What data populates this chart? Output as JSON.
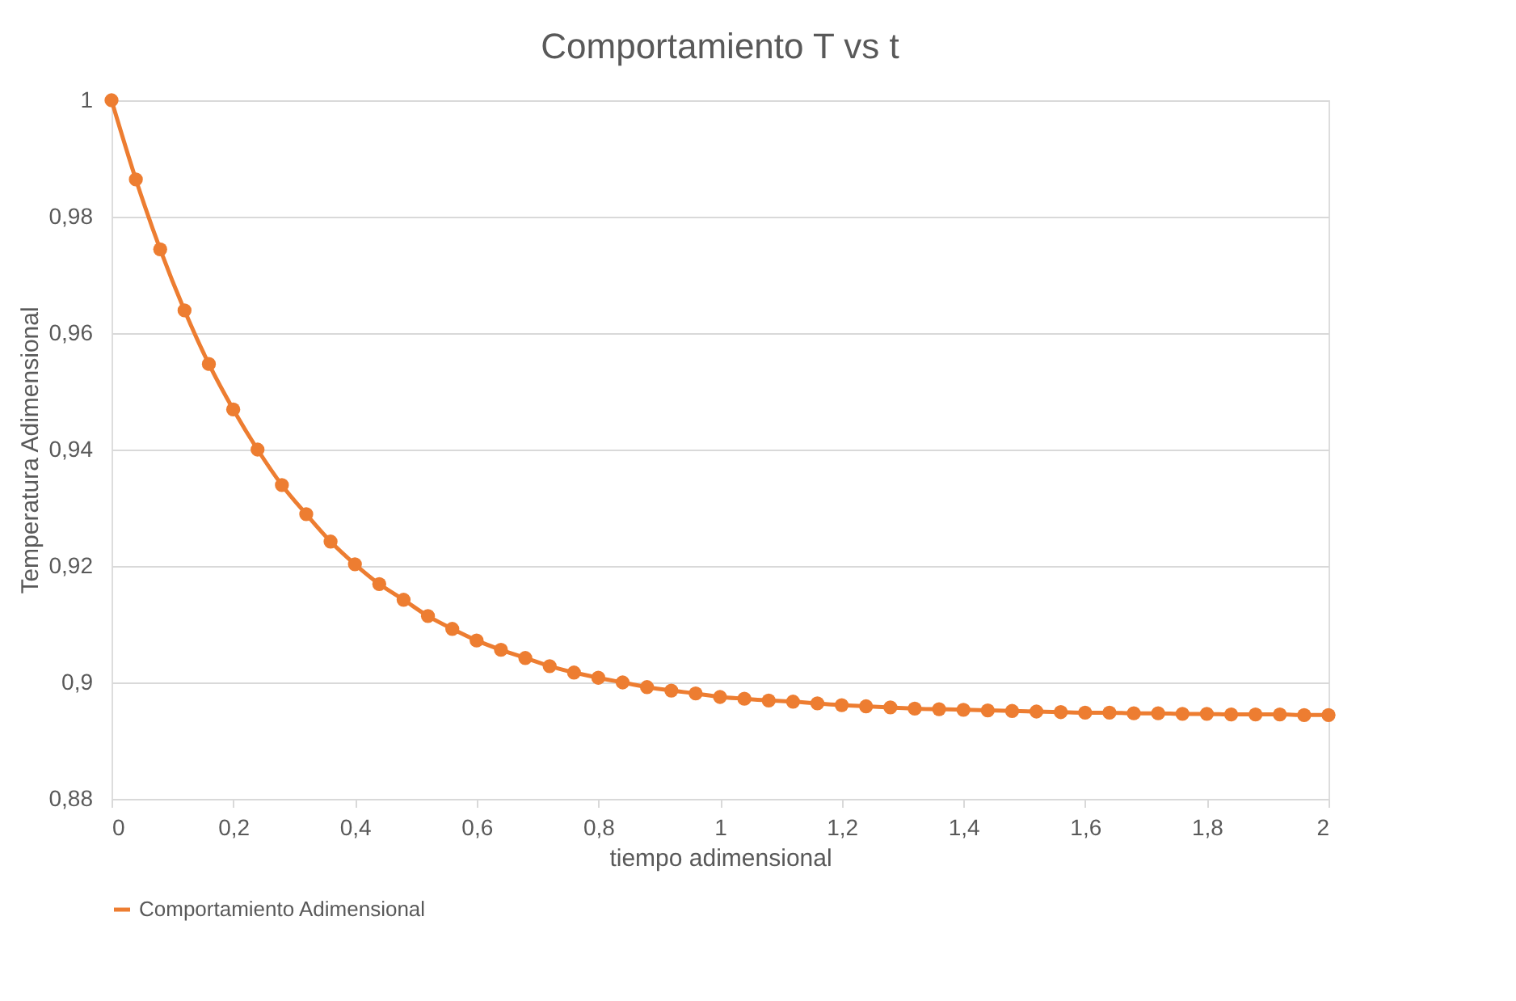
{
  "chart_data": {
    "type": "line",
    "title": "Comportamiento T vs t",
    "xlabel": "tiempo adimensional",
    "ylabel": "Temperatura Adimensional",
    "x": [
      0,
      0.04,
      0.08,
      0.12,
      0.16,
      0.2,
      0.24,
      0.28,
      0.32,
      0.36,
      0.4,
      0.44,
      0.48,
      0.52,
      0.56,
      0.6,
      0.64,
      0.68,
      0.72,
      0.76,
      0.8,
      0.84,
      0.88,
      0.92,
      0.96,
      1.0,
      1.04,
      1.08,
      1.12,
      1.16,
      1.2,
      1.24,
      1.28,
      1.32,
      1.36,
      1.4,
      1.44,
      1.48,
      1.52,
      1.56,
      1.6,
      1.64,
      1.68,
      1.72,
      1.76,
      1.8,
      1.84,
      1.88,
      1.92,
      1.96,
      2.0
    ],
    "series": [
      {
        "name": "Comportamiento Adimensional",
        "color": "#ed7d31",
        "values": [
          1.0,
          0.9864,
          0.9744,
          0.9639,
          0.9547,
          0.9469,
          0.94,
          0.9339,
          0.9289,
          0.9242,
          0.9203,
          0.9169,
          0.9142,
          0.9114,
          0.9092,
          0.9072,
          0.9056,
          0.9042,
          0.9028,
          0.9017,
          0.9008,
          0.9,
          0.8992,
          0.8986,
          0.8981,
          0.8975,
          0.8972,
          0.8969,
          0.8967,
          0.8964,
          0.8961,
          0.8959,
          0.8957,
          0.8955,
          0.8954,
          0.8953,
          0.8952,
          0.8951,
          0.895,
          0.8949,
          0.8948,
          0.8948,
          0.8947,
          0.8947,
          0.8946,
          0.8946,
          0.8945,
          0.8945,
          0.8945,
          0.8944,
          0.8944
        ]
      }
    ],
    "xlim": [
      0,
      2
    ],
    "ylim": [
      0.88,
      1.0
    ],
    "xticks": [
      0,
      {
        "value": 0.2,
        "label": "0,2"
      },
      {
        "value": 0.4,
        "label": "0,4"
      },
      {
        "value": 0.6,
        "label": "0,6"
      },
      {
        "value": 0.8,
        "label": "0,8"
      },
      1,
      {
        "value": 1.2,
        "label": "1,2"
      },
      {
        "value": 1.4,
        "label": "1,4"
      },
      {
        "value": 1.6,
        "label": "1,6"
      },
      {
        "value": 1.8,
        "label": "1,8"
      },
      2
    ],
    "yticks": [
      {
        "value": 0.88,
        "label": "0,88"
      },
      {
        "value": 0.9,
        "label": "0,9"
      },
      {
        "value": 0.92,
        "label": "0,92"
      },
      {
        "value": 0.94,
        "label": "0,94"
      },
      {
        "value": 0.96,
        "label": "0,96"
      },
      {
        "value": 0.98,
        "label": "0,98"
      },
      1
    ],
    "grid": "y",
    "legend": "bottom",
    "marker": "circle",
    "line_style": "solid"
  }
}
